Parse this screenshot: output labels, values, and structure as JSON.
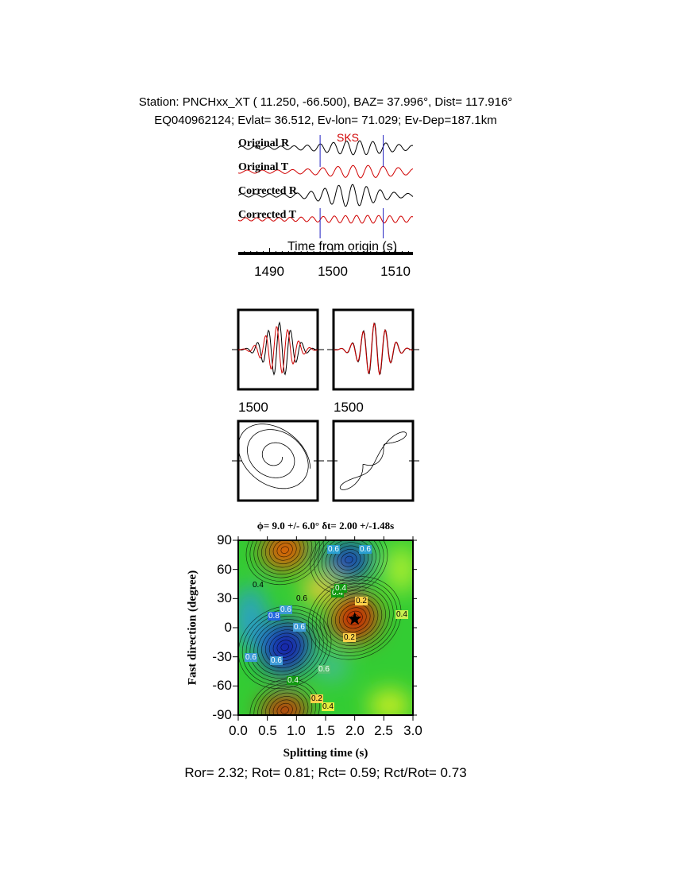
{
  "header": {
    "station_line": "Station: PNCHxx_XT (  11.250,  -66.500), BAZ=   37.996°, Dist=  117.916°",
    "event_line": "EQ040962124; Evlat=  36.512, Ev-lon=  71.029; Ev-Dep=187.1km"
  },
  "traces": {
    "labels": [
      "Original R",
      "Original T",
      "Corrected R",
      "Corrected T"
    ],
    "phase": "SKS",
    "window_start": 1498,
    "window_end": 1508,
    "xlabel": "Time from origin (s)",
    "xticks": [
      "1490",
      "1500",
      "1510"
    ]
  },
  "particle_panels": {
    "time_labels": [
      "1500",
      "1500"
    ]
  },
  "grid": {
    "title": "ϕ= 9.0 +/- 6.0° δt= 2.00 +/-1.48s",
    "xlabel": "Splitting time (s)",
    "ylabel": "Fast direction (degree)",
    "yticks": [
      "90",
      "60",
      "30",
      "0",
      "-30",
      "-60",
      "-90"
    ],
    "xticks": [
      "0.0",
      "0.5",
      "1.0",
      "1.5",
      "2.0",
      "2.5",
      "3.0"
    ],
    "contour_labels": [
      "0.4",
      "0.6",
      "0.6",
      "0.4",
      "0.2",
      "0.8",
      "0.6",
      "0.6",
      "0.6",
      "0.4",
      "0.6",
      "0.6",
      "0.6",
      "0.4",
      "0.2",
      "0.2",
      "0.4",
      "0.4"
    ],
    "colors": {
      "low": "#1414d2",
      "mid": "#33cc33",
      "high": "#d62200"
    }
  },
  "chart_data": {
    "type": "heatmap",
    "title": "ϕ= 9.0 +/- 6.0° δt= 2.00 +/-1.48s",
    "xlabel": "Splitting time (s)",
    "ylabel": "Fast direction (degree)",
    "xlim": [
      0,
      3
    ],
    "ylim": [
      -90,
      90
    ],
    "best": {
      "phi": 9.0,
      "phi_err": 6.0,
      "dt": 2.0,
      "dt_err": 1.48
    }
  },
  "footer": {
    "ratios": "Ror= 2.32; Rot= 0.81; Rct= 0.59; Rct/Rot= 0.73"
  }
}
